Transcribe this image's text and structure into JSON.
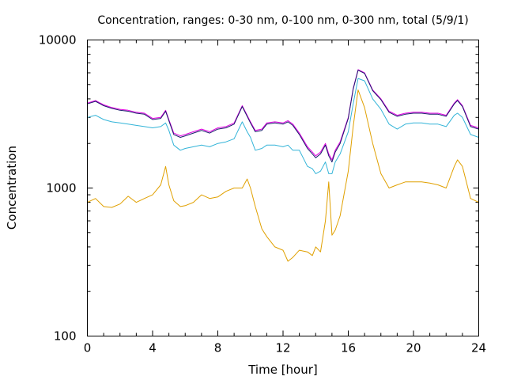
{
  "chart_data": {
    "type": "line",
    "title": "Concentration, ranges: 0-30 nm, 0-100 nm, 0-300 nm, total (5/9/1)",
    "xlabel": "Time [hour]",
    "ylabel": "Concentration",
    "xlim": [
      0,
      24
    ],
    "ylim": [
      100,
      10000
    ],
    "yscale": "log",
    "grid": false,
    "legend": "none",
    "x_ticks": [
      0,
      4,
      8,
      12,
      16,
      20,
      24
    ],
    "x_tick_labels": [
      "0",
      "4",
      "8",
      "12",
      "16",
      "20",
      "24"
    ],
    "y_ticks": [
      100,
      1000,
      10000
    ],
    "y_tick_labels": [
      "100",
      "1000",
      "10000"
    ],
    "series": [
      {
        "color": "#e0a000",
        "x": [
          0,
          0.5,
          1,
          1.5,
          2,
          2.5,
          3,
          3.5,
          4,
          4.5,
          4.8,
          5,
          5.3,
          5.7,
          6,
          6.5,
          7,
          7.5,
          8,
          8.5,
          9,
          9.5,
          9.8,
          10,
          10.3,
          10.7,
          11,
          11.5,
          12,
          12.3,
          12.6,
          13,
          13.5,
          13.8,
          14,
          14.3,
          14.6,
          14.8,
          15,
          15.2,
          15.5,
          16,
          16.3,
          16.6,
          17,
          17.5,
          18,
          18.5,
          19,
          19.5,
          20,
          20.5,
          21,
          21.5,
          22,
          22.5,
          22.7,
          23,
          23.5,
          24
        ],
        "values": [
          800,
          850,
          750,
          740,
          780,
          880,
          800,
          850,
          900,
          1050,
          1400,
          1050,
          820,
          750,
          760,
          800,
          900,
          850,
          870,
          950,
          1000,
          1000,
          1150,
          1000,
          750,
          530,
          470,
          400,
          380,
          320,
          340,
          380,
          370,
          350,
          400,
          370,
          600,
          1100,
          480,
          520,
          650,
          1300,
          2600,
          4600,
          3500,
          2000,
          1250,
          1000,
          1050,
          1100,
          1100,
          1100,
          1080,
          1050,
          1000,
          1400,
          1550,
          1400,
          850,
          800
        ]
      },
      {
        "color": "#33b4d8",
        "x": [
          0,
          0.5,
          1,
          1.5,
          2,
          2.5,
          3,
          3.5,
          4,
          4.5,
          4.8,
          5,
          5.3,
          5.7,
          6,
          6.5,
          7,
          7.5,
          8,
          8.5,
          9,
          9.5,
          9.8,
          10,
          10.3,
          10.7,
          11,
          11.5,
          12,
          12.3,
          12.6,
          13,
          13.5,
          13.8,
          14,
          14.3,
          14.6,
          14.8,
          15,
          15.2,
          15.5,
          16,
          16.3,
          16.6,
          17,
          17.5,
          18,
          18.5,
          19,
          19.5,
          20,
          20.5,
          21,
          21.5,
          22,
          22.5,
          22.7,
          23,
          23.5,
          24
        ],
        "values": [
          3000,
          3100,
          2900,
          2800,
          2750,
          2700,
          2650,
          2600,
          2550,
          2600,
          2750,
          2450,
          1950,
          1800,
          1850,
          1900,
          1950,
          1900,
          2000,
          2050,
          2150,
          2800,
          2400,
          2200,
          1800,
          1850,
          1950,
          1950,
          1900,
          1950,
          1800,
          1800,
          1400,
          1350,
          1250,
          1300,
          1500,
          1250,
          1250,
          1500,
          1700,
          2400,
          3700,
          5500,
          5300,
          4000,
          3400,
          2700,
          2500,
          2700,
          2750,
          2750,
          2700,
          2700,
          2600,
          3100,
          3200,
          3000,
          2300,
          2200
        ]
      },
      {
        "color": "#e000e0",
        "x": [
          0,
          0.5,
          1,
          1.5,
          2,
          2.5,
          3,
          3.5,
          4,
          4.5,
          4.8,
          5,
          5.3,
          5.7,
          6,
          6.5,
          7,
          7.5,
          8,
          8.5,
          9,
          9.5,
          9.8,
          10,
          10.3,
          10.7,
          11,
          11.5,
          12,
          12.3,
          12.6,
          13,
          13.5,
          13.8,
          14,
          14.3,
          14.6,
          14.8,
          15,
          15.2,
          15.5,
          16,
          16.3,
          16.6,
          17,
          17.5,
          18,
          18.5,
          19,
          19.5,
          20,
          20.5,
          21,
          21.5,
          22,
          22.5,
          22.7,
          23,
          23.5,
          24
        ],
        "values": [
          3750,
          3900,
          3650,
          3500,
          3400,
          3350,
          3250,
          3200,
          2950,
          3000,
          3350,
          2900,
          2350,
          2250,
          2300,
          2400,
          2500,
          2400,
          2550,
          2600,
          2750,
          3600,
          3100,
          2800,
          2450,
          2500,
          2750,
          2800,
          2750,
          2850,
          2700,
          2350,
          1900,
          1750,
          1650,
          1750,
          2000,
          1700,
          1550,
          1800,
          2050,
          3000,
          4700,
          6300,
          6000,
          4600,
          4000,
          3300,
          3100,
          3200,
          3250,
          3250,
          3200,
          3200,
          3100,
          3750,
          3950,
          3600,
          2650,
          2550
        ]
      },
      {
        "color": "#1c1c6e",
        "x": [
          0,
          0.5,
          1,
          1.5,
          2,
          2.5,
          3,
          3.5,
          4,
          4.5,
          4.8,
          5,
          5.3,
          5.7,
          6,
          6.5,
          7,
          7.5,
          8,
          8.5,
          9,
          9.5,
          9.8,
          10,
          10.3,
          10.7,
          11,
          11.5,
          12,
          12.3,
          12.6,
          13,
          13.5,
          13.8,
          14,
          14.3,
          14.6,
          14.8,
          15,
          15.2,
          15.5,
          16,
          16.3,
          16.6,
          17,
          17.5,
          18,
          18.5,
          19,
          19.5,
          20,
          20.5,
          21,
          21.5,
          22,
          22.5,
          22.7,
          23,
          23.5,
          24
        ],
        "values": [
          3700,
          3850,
          3600,
          3450,
          3350,
          3300,
          3200,
          3150,
          2900,
          2950,
          3300,
          2850,
          2300,
          2200,
          2250,
          2350,
          2450,
          2350,
          2500,
          2550,
          2700,
          3550,
          3050,
          2750,
          2400,
          2450,
          2700,
          2750,
          2700,
          2800,
          2650,
          2300,
          1850,
          1700,
          1600,
          1700,
          1950,
          1650,
          1500,
          1750,
          2000,
          2950,
          4650,
          6250,
          5950,
          4550,
          3950,
          3250,
          3050,
          3150,
          3200,
          3200,
          3150,
          3150,
          3050,
          3700,
          3900,
          3550,
          2600,
          2500
        ]
      }
    ]
  }
}
